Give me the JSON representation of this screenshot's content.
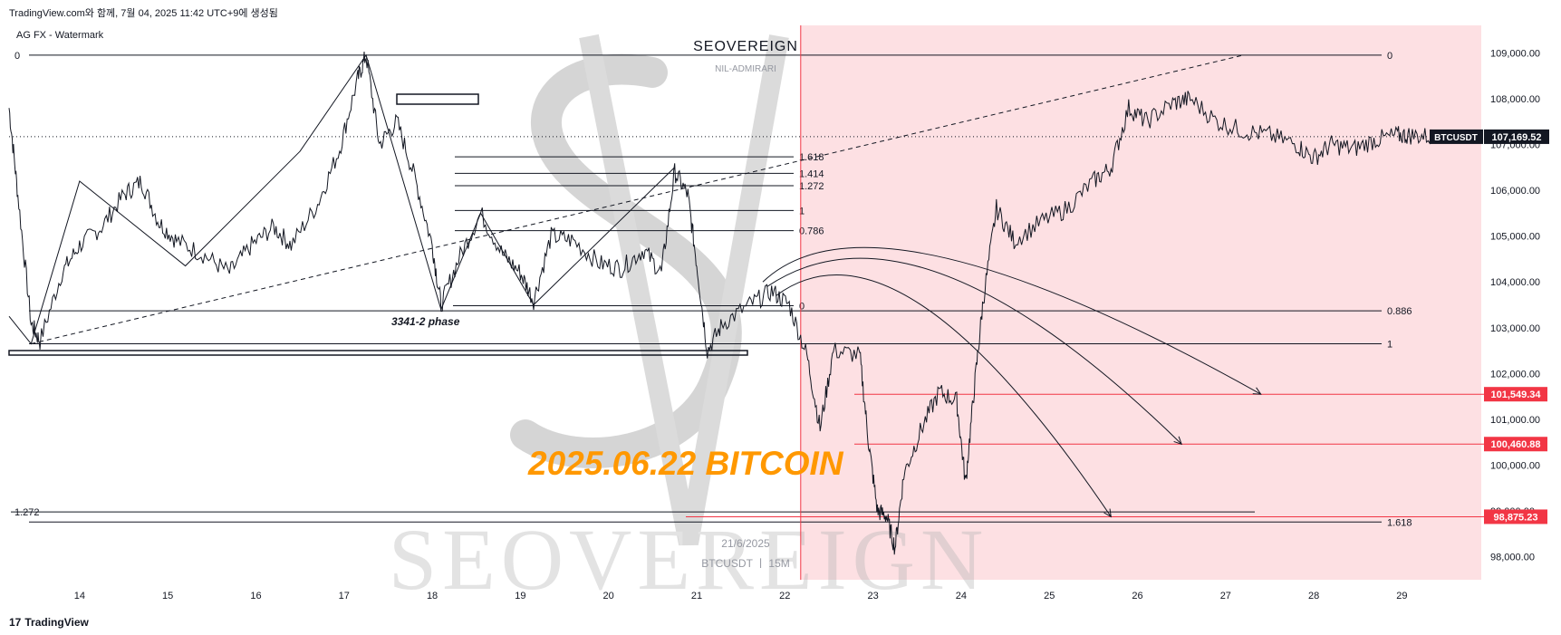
{
  "header": {
    "text": "TradingView.com와 함께, 7월 04, 2025 11:42 UTC+9에 생성됨"
  },
  "indicator_label": "AG FX - Watermark",
  "watermark": {
    "brand": "SEOVEREIGN",
    "sub": "NIL-ADMIRARI",
    "big": "SEOVEREIGN",
    "date": "21/6/2025",
    "symbol": "BTCUSDT ㅣ 15M"
  },
  "annotations": {
    "title": "2025.06.22 BITCOIN",
    "phase": "3341-2 phase"
  },
  "footer": {
    "logo_mark": "17",
    "logo_text": "TradingView"
  },
  "colors": {
    "shaded_region": "#fde0e3",
    "red_line": "#f23645",
    "title_orange": "#ff9800",
    "price_label_dark": "#131722",
    "line_dark": "#131722"
  },
  "chart_data": {
    "type": "line",
    "symbol": "BTCUSDT",
    "timeframe": "15M",
    "x_ticks": [
      "14",
      "15",
      "16",
      "17",
      "18",
      "19",
      "20",
      "21",
      "22",
      "23",
      "24",
      "25",
      "26",
      "27",
      "28",
      "29"
    ],
    "y_ticks": [
      "109,000.00",
      "108,000.00",
      "107,000.00",
      "106,000.00",
      "105,000.00",
      "104,000.00",
      "103,000.00",
      "102,000.00",
      "101,000.00",
      "100,000.00",
      "99,000.00",
      "98,000.00"
    ],
    "y_range": [
      97500,
      109600
    ],
    "x_range": [
      13.2,
      29.9
    ],
    "grid": false,
    "current_price": {
      "label": "BTCUSDT",
      "value": "107,169.52",
      "y": 107169.52
    },
    "price_labels": [
      {
        "value": "101,549.34",
        "y": 101549.34
      },
      {
        "value": "100,460.88",
        "y": 100460.88
      },
      {
        "value": "98,875.23",
        "y": 98875.23
      }
    ],
    "right_fib_levels": [
      {
        "label": "0",
        "y": 108950
      },
      {
        "label": "0.886",
        "y": 103370
      },
      {
        "label": "1",
        "y": 102650
      },
      {
        "label": "1.618",
        "y": 98760
      }
    ],
    "mid_fib_levels": [
      {
        "label": "1.618",
        "y": 106730
      },
      {
        "label": "1.414",
        "y": 106370
      },
      {
        "label": "1.272",
        "y": 106100
      },
      {
        "label": "1",
        "y": 105560
      },
      {
        "label": "0.786",
        "y": 105120
      },
      {
        "label": "0",
        "y": 103480
      }
    ],
    "left_labels": [
      {
        "label": "0",
        "y": 108950
      },
      {
        "label": "1.272",
        "y": 98980
      }
    ],
    "shaded_from_x": 22.18,
    "price_path": [
      [
        13.2,
        107800
      ],
      [
        13.3,
        105900
      ],
      [
        13.45,
        103100
      ],
      [
        13.55,
        102700
      ],
      [
        13.8,
        104200
      ],
      [
        14.0,
        104800
      ],
      [
        14.25,
        105200
      ],
      [
        14.5,
        105900
      ],
      [
        14.7,
        106200
      ],
      [
        14.9,
        105300
      ],
      [
        15.1,
        104900
      ],
      [
        15.4,
        104600
      ],
      [
        15.7,
        104200
      ],
      [
        15.95,
        104800
      ],
      [
        16.2,
        105200
      ],
      [
        16.4,
        104800
      ],
      [
        16.7,
        105700
      ],
      [
        16.95,
        106900
      ],
      [
        17.15,
        108400
      ],
      [
        17.25,
        108950
      ],
      [
        17.4,
        107000
      ],
      [
        17.6,
        107500
      ],
      [
        17.8,
        106300
      ],
      [
        18.0,
        104800
      ],
      [
        18.1,
        103500
      ],
      [
        18.3,
        104500
      ],
      [
        18.55,
        105500
      ],
      [
        18.8,
        104600
      ],
      [
        19.0,
        104200
      ],
      [
        19.15,
        103600
      ],
      [
        19.35,
        105000
      ],
      [
        19.6,
        104900
      ],
      [
        19.9,
        104400
      ],
      [
        20.15,
        104300
      ],
      [
        20.4,
        104700
      ],
      [
        20.6,
        104200
      ],
      [
        20.75,
        106400
      ],
      [
        20.9,
        105900
      ],
      [
        21.0,
        104400
      ],
      [
        21.12,
        102500
      ],
      [
        21.3,
        103100
      ],
      [
        21.6,
        103500
      ],
      [
        21.85,
        103800
      ],
      [
        22.05,
        103500
      ],
      [
        22.25,
        102400
      ],
      [
        22.4,
        100800
      ],
      [
        22.55,
        102500
      ],
      [
        22.85,
        102400
      ],
      [
        22.95,
        100500
      ],
      [
        23.05,
        99000
      ],
      [
        23.15,
        98900
      ],
      [
        23.25,
        98200
      ],
      [
        23.35,
        99800
      ],
      [
        23.55,
        100800
      ],
      [
        23.75,
        101600
      ],
      [
        23.95,
        101400
      ],
      [
        24.05,
        99600
      ],
      [
        24.15,
        101700
      ],
      [
        24.25,
        103600
      ],
      [
        24.4,
        105600
      ],
      [
        24.6,
        104900
      ],
      [
        24.9,
        105300
      ],
      [
        25.2,
        105600
      ],
      [
        25.5,
        106200
      ],
      [
        25.7,
        106500
      ],
      [
        25.9,
        107800
      ],
      [
        26.1,
        107500
      ],
      [
        26.4,
        107900
      ],
      [
        26.6,
        108000
      ],
      [
        26.9,
        107500
      ],
      [
        27.2,
        107300
      ],
      [
        27.5,
        107200
      ],
      [
        27.8,
        107000
      ],
      [
        28.0,
        106700
      ],
      [
        28.2,
        107000
      ],
      [
        28.45,
        106900
      ],
      [
        28.7,
        107100
      ],
      [
        28.95,
        107200
      ],
      [
        29.1,
        107200
      ],
      [
        29.35,
        107170
      ]
    ],
    "zigzag": [
      [
        13.2,
        103250
      ],
      [
        13.45,
        102650
      ],
      [
        14.0,
        106200
      ],
      [
        15.2,
        104350
      ],
      [
        16.5,
        106850
      ],
      [
        17.25,
        108950
      ],
      [
        18.1,
        103400
      ],
      [
        18.55,
        105500
      ],
      [
        19.15,
        103500
      ],
      [
        20.75,
        106500
      ]
    ],
    "dashed_trend": [
      [
        13.45,
        102650
      ],
      [
        27.2,
        108950
      ]
    ]
  }
}
